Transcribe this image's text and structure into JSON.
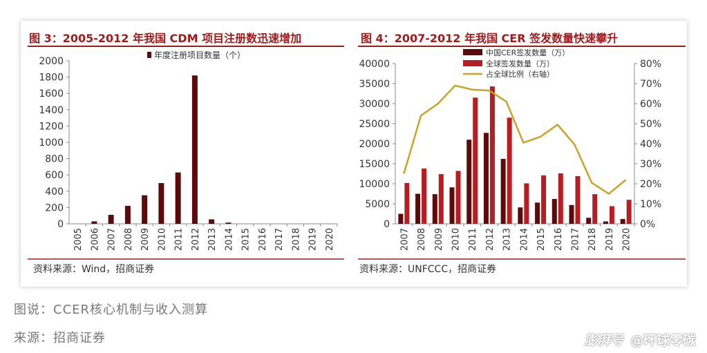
{
  "colors": {
    "title": "#a01c1c",
    "rule": "#a01c1c",
    "dark_bar": "#5c0a0a",
    "bright_bar": "#b81d22",
    "line": "#c9a227"
  },
  "chart_data": [
    {
      "type": "bar",
      "title": "图 3：2005-2012 年我国 CDM 项目注册数迅速增加",
      "categories": [
        "2005",
        "2006",
        "2007",
        "2008",
        "2009",
        "2010",
        "2011",
        "2012",
        "2013",
        "2014",
        "2015",
        "2016",
        "2017",
        "2018",
        "2019",
        "2020"
      ],
      "series": [
        {
          "name": "年度注册项目数量（个）",
          "values": [
            0,
            30,
            110,
            220,
            350,
            500,
            630,
            1820,
            55,
            15,
            0,
            0,
            0,
            0,
            0,
            0
          ]
        }
      ],
      "ylim": [
        0,
        2000
      ],
      "yticks": [
        "0",
        "200",
        "400",
        "600",
        "800",
        "1000",
        "1200",
        "1400",
        "1600",
        "1800",
        "2000"
      ],
      "legend_position": "top-center",
      "source": "资料来源：Wind，招商证券"
    },
    {
      "type": "bar",
      "title": "图 4：2007-2012 年我国 CER 签发数量快速攀升",
      "categories": [
        "2007",
        "2008",
        "2009",
        "2010",
        "2011",
        "2012",
        "2013",
        "2014",
        "2015",
        "2016",
        "2017",
        "2018",
        "2019",
        "2020"
      ],
      "series": [
        {
          "name": "中国CER签发数量（万）",
          "type": "bar",
          "values": [
            2500,
            7500,
            7400,
            9100,
            21000,
            22700,
            16200,
            4100,
            5300,
            6200,
            4700,
            1500,
            600,
            1200
          ]
        },
        {
          "name": "全球签发数量（万）",
          "type": "bar",
          "values": [
            10200,
            13800,
            12400,
            13200,
            31500,
            34300,
            26500,
            10100,
            12100,
            12600,
            11900,
            7400,
            4400,
            6000
          ]
        },
        {
          "name": "占全球比例（右轴）",
          "type": "line",
          "axis": "right",
          "values": [
            25,
            54,
            60,
            69,
            67,
            66.5,
            61,
            40.5,
            43.5,
            49.5,
            39.5,
            20.5,
            15,
            22
          ]
        }
      ],
      "ylim": [
        0,
        40000
      ],
      "yticks": [
        "0",
        "5000",
        "10000",
        "15000",
        "20000",
        "25000",
        "30000",
        "35000",
        "40000"
      ],
      "y2lim": [
        0,
        80
      ],
      "y2ticks": [
        "0%",
        "10%",
        "20%",
        "30%",
        "40%",
        "50%",
        "60%",
        "70%",
        "80%"
      ],
      "legend_position": "top-center",
      "source": "资料来源：UNFCCC，招商证券"
    }
  ],
  "caption": "图说：CCER核心机制与收入测算",
  "source_line": "来源：招商证券",
  "watermark": {
    "brand": "澎湃号",
    "account": "@环球零碳"
  }
}
